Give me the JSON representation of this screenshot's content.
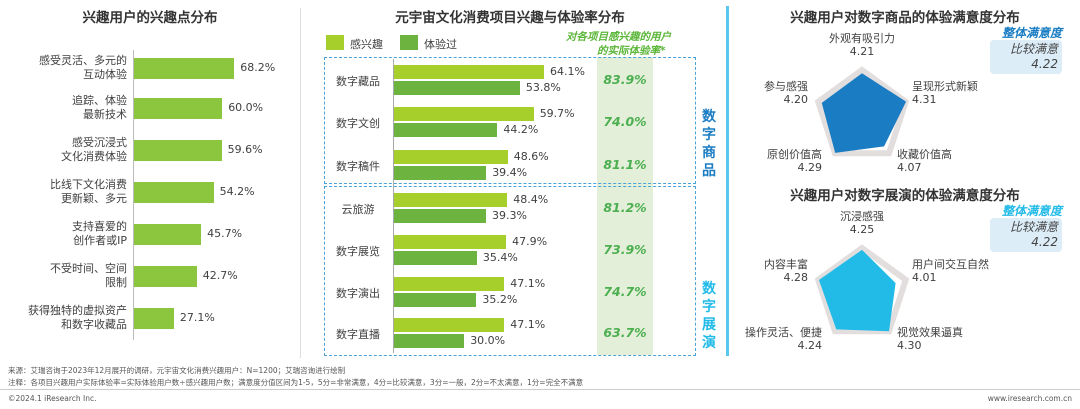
{
  "colors": {
    "interest": "#a6cf2b",
    "experienced": "#6cb33f",
    "left_bar": "#8cc63e",
    "rate_bg": "#e3efd9",
    "goods": "#1a7dc4",
    "show": "#22bbe8"
  },
  "chart_data": [
    {
      "type": "bar",
      "title": "兴趣用户的兴趣点分布",
      "categories": [
        "感受灵活、多元的互动体验",
        "追踪、体验最新技术",
        "感受沉浸式文化消费体验",
        "比线下文化消费更新颖、多元",
        "支持喜爱的创作者或IP",
        "不受时间、空间限制",
        "获得独特的虚拟资产和数字收藏品"
      ],
      "category_lines": [
        [
          "感受灵活、多元的",
          "互动体验"
        ],
        [
          "追踪、体验",
          "最新技术"
        ],
        [
          "感受沉浸式",
          "文化消费体验"
        ],
        [
          "比线下文化消费",
          "更新颖、多元"
        ],
        [
          "支持喜爱的",
          "创作者或IP"
        ],
        [
          "不受时间、空间",
          "限制"
        ],
        [
          "获得独特的虚拟资产",
          "和数字收藏品"
        ]
      ],
      "values": [
        68.2,
        60.0,
        59.6,
        54.2,
        45.7,
        42.7,
        27.1
      ],
      "labels": [
        "68.2%",
        "60.0%",
        "59.6%",
        "54.2%",
        "45.7%",
        "42.7%",
        "27.1%"
      ]
    },
    {
      "type": "bar",
      "title": "元宇宙文化消费项目兴趣与体验率分布",
      "legend": [
        "感兴趣",
        "体验过"
      ],
      "rate_header": [
        "对各项目感兴趣的用户",
        "的实际体验率*"
      ],
      "groups": [
        {
          "name": "数字商品",
          "chars": [
            "数",
            "字",
            "商",
            "品"
          ]
        },
        {
          "name": "数字展演",
          "chars": [
            "数",
            "字",
            "展",
            "演"
          ]
        }
      ],
      "categories": [
        "数字藏品",
        "数字文创",
        "数字稿件",
        "云旅游",
        "数字展览",
        "数字演出",
        "数字直播"
      ],
      "series": [
        {
          "name": "感兴趣",
          "values": [
            64.1,
            59.7,
            48.6,
            48.4,
            47.9,
            47.1,
            47.1
          ],
          "labels": [
            "64.1%",
            "59.7%",
            "48.6%",
            "48.4%",
            "47.9%",
            "47.1%",
            "47.1%"
          ]
        },
        {
          "name": "体验过",
          "values": [
            53.8,
            44.2,
            39.4,
            39.3,
            35.4,
            35.2,
            30.0
          ],
          "labels": [
            "53.8%",
            "44.2%",
            "39.4%",
            "39.3%",
            "35.4%",
            "35.2%",
            "30.0%"
          ]
        }
      ],
      "rates": [
        "83.9%",
        "74.0%",
        "81.1%",
        "81.2%",
        "73.9%",
        "74.7%",
        "63.7%"
      ]
    },
    {
      "type": "radar",
      "title": "兴趣用户对数字商品的体验满意度分布",
      "axes": [
        "外观有吸引力",
        "呈现形式新颖",
        "收藏价值高",
        "原创价值高",
        "参与感强"
      ],
      "values": [
        4.21,
        4.31,
        4.07,
        4.29,
        4.2
      ],
      "labels": [
        "4.21",
        "4.31",
        "4.07",
        "4.29",
        "4.20"
      ],
      "overall": {
        "title": "整体满意度",
        "level": "比较满意",
        "score": "4.22"
      }
    },
    {
      "type": "radar",
      "title": "兴趣用户对数字展演的体验满意度分布",
      "axes": [
        "沉浸感强",
        "用户间交互自然",
        "视觉效果逼真",
        "操作灵活、便捷",
        "内容丰富"
      ],
      "values": [
        4.25,
        4.01,
        4.3,
        4.24,
        4.28
      ],
      "labels": [
        "4.25",
        "4.01",
        "4.30",
        "4.24",
        "4.28"
      ],
      "overall": {
        "title": "整体满意度",
        "level": "比较满意",
        "score": "4.22"
      }
    }
  ],
  "footer": {
    "source": "来源：艾瑞咨询于2023年12月展开的调研，元宇宙文化消费兴趣用户：N=1200；艾瑞咨询进行绘制",
    "note": "注释：各项目兴趣用户实际体验率=实际体验用户数÷感兴趣用户数；满意度分值区间为1-5，5分=非常满意，4分=比较满意，3分=一般，2分=不太满意，1分=完全不满意",
    "copyright": "©2024.1 iResearch Inc.",
    "url": "www.iresearch.com.cn"
  }
}
